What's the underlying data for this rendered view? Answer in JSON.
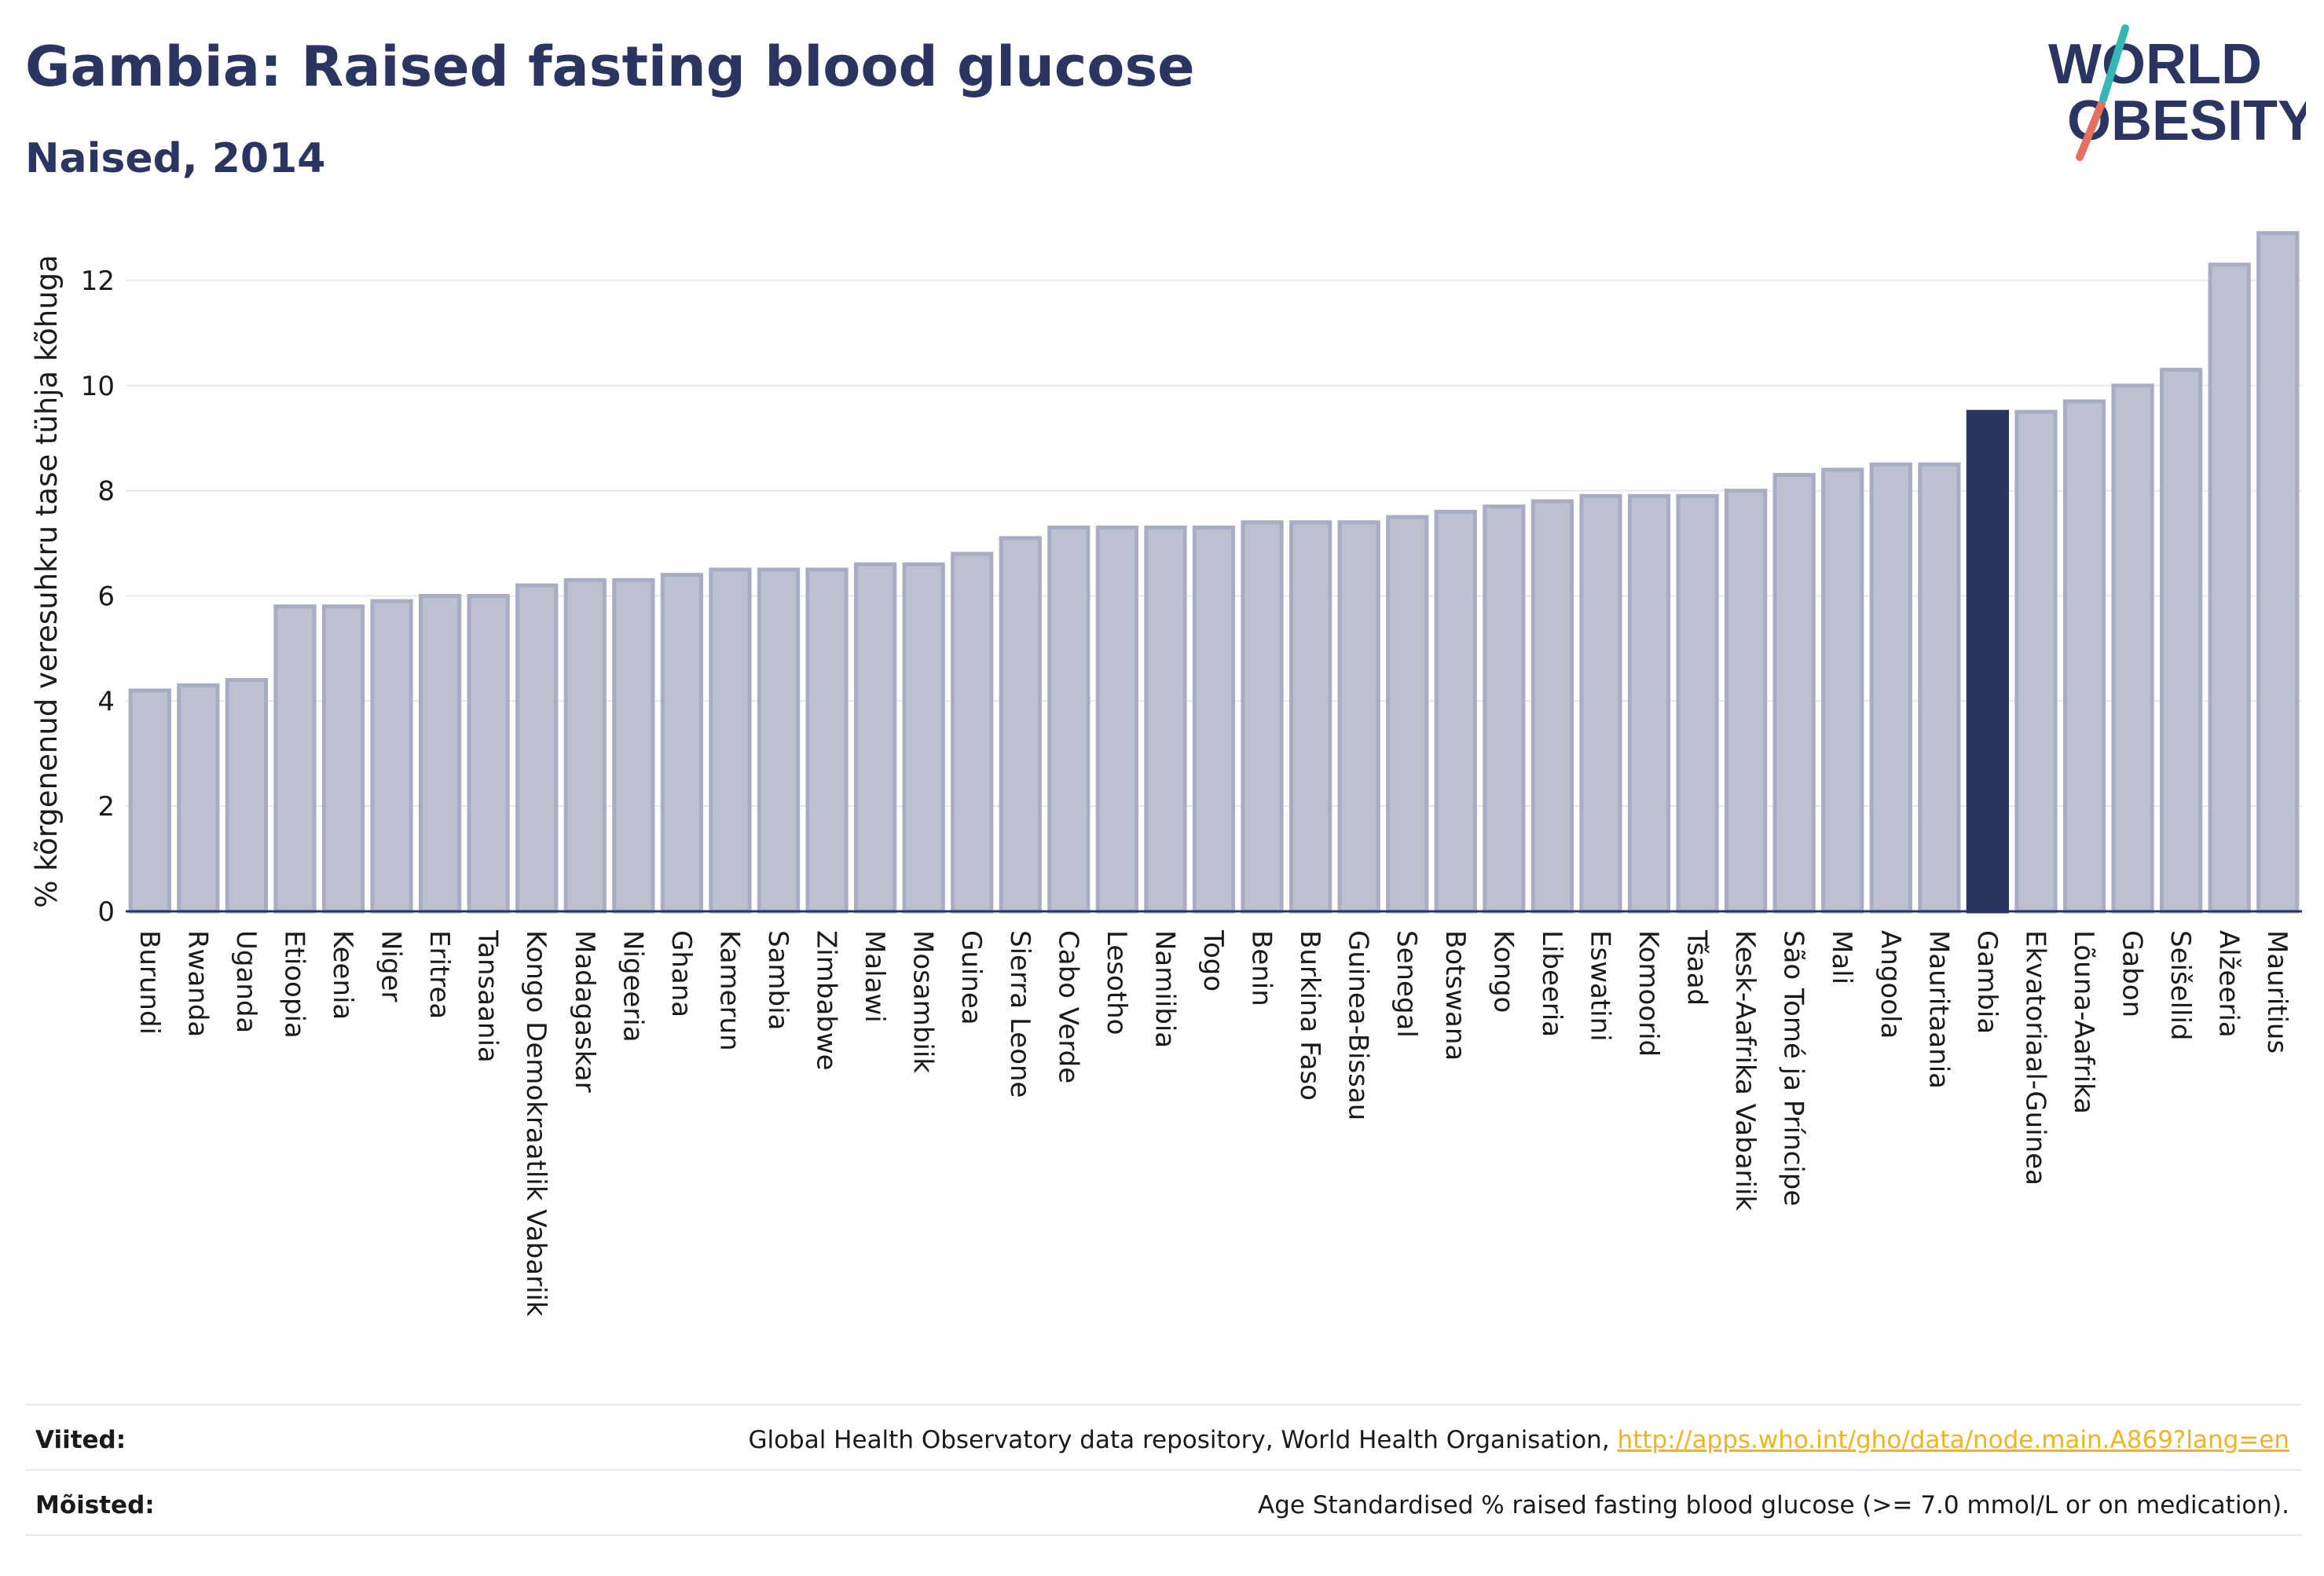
{
  "chart_data": {
    "type": "bar",
    "title": "Gambia: Raised fasting blood glucose",
    "subtitle": "Naised, 2014",
    "ylabel": "% kõrgenenud veresuhkru tase tühja kõhuga",
    "xlabel": "",
    "ylim": [
      0,
      13
    ],
    "yticks": [
      0,
      2,
      4,
      6,
      8,
      10,
      12
    ],
    "grid": true,
    "highlight": "Gambia",
    "colors": {
      "bar": "#bcc0cf",
      "bar_edge": "#a8adc4",
      "highlight": "#2b3561",
      "grid": "#e6e8ef",
      "axis": "#2b3561"
    },
    "categories": [
      "Burundi",
      "Rwanda",
      "Uganda",
      "Etioopia",
      "Keenia",
      "Niger",
      "Eritrea",
      "Tansaania",
      "Kongo Demokraatlik Vabariik",
      "Madagaskar",
      "Nigeeria",
      "Ghana",
      "Kamerun",
      "Sambia",
      "Zimbabwe",
      "Malawi",
      "Mosambiik",
      "Guinea",
      "Sierra Leone",
      "Cabo Verde",
      "Lesotho",
      "Namiibia",
      "Togo",
      "Benin",
      "Burkina Faso",
      "Guinea-Bissau",
      "Senegal",
      "Botswana",
      "Kongo",
      "Libeeria",
      "Eswatini",
      "Komoorid",
      "Tšaad",
      "Kesk-Aafrika Vabariik",
      "São Tomé ja Príncipe",
      "Mali",
      "Angoola",
      "Mauritaania",
      "Gambia",
      "Ekvatoriaal-Guinea",
      "Lõuna-Aafrika",
      "Gabon",
      "Seišellid",
      "Alžeeria",
      "Mauritius"
    ],
    "values": [
      4.2,
      4.3,
      4.4,
      5.8,
      5.8,
      5.9,
      6.0,
      6.0,
      6.2,
      6.3,
      6.3,
      6.4,
      6.5,
      6.5,
      6.5,
      6.6,
      6.6,
      6.8,
      7.1,
      7.3,
      7.3,
      7.3,
      7.3,
      7.4,
      7.4,
      7.4,
      7.5,
      7.6,
      7.7,
      7.8,
      7.9,
      7.9,
      7.9,
      8.0,
      8.3,
      8.4,
      8.5,
      8.5,
      9.5,
      9.5,
      9.7,
      10.0,
      10.3,
      12.3,
      12.9
    ]
  },
  "logo": {
    "line1": "WORLD",
    "line2": "OBESITY"
  },
  "footer": {
    "references_label": "Viited:",
    "references_text": "Global Health Observatory data repository, World Health Organisation, ",
    "references_link": "http://apps.who.int/gho/data/node.main.A869?lang=en",
    "definitions_label": "Mõisted:",
    "definitions_text": "Age Standardised % raised fasting blood glucose (>= 7.0 mmol/L or on medication)."
  }
}
